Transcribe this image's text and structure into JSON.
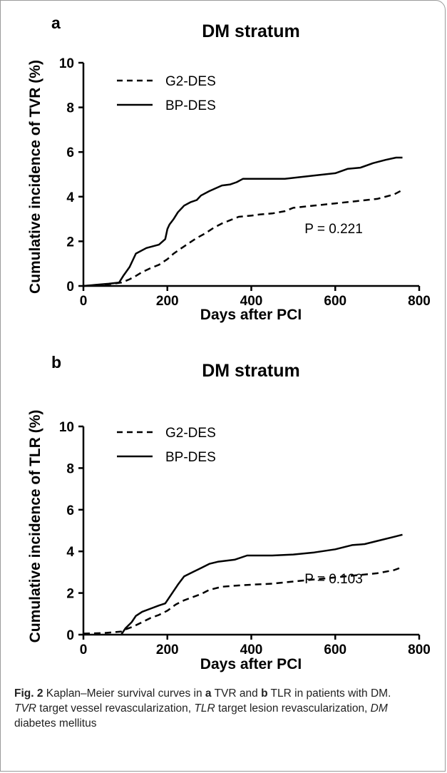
{
  "chart_data": [
    {
      "type": "line",
      "panel_label": "a",
      "title": "DM stratum",
      "xlabel": "Days after PCI",
      "ylabel": "Cumulative incidence of TVR (%)",
      "xlim": [
        0,
        800
      ],
      "ylim": [
        0,
        10
      ],
      "xticks": [
        0,
        200,
        400,
        600,
        800
      ],
      "yticks": [
        0,
        2,
        4,
        6,
        8,
        10
      ],
      "annotation": "P = 0.221",
      "legend_position": "top-left",
      "series": [
        {
          "name": "G2-DES",
          "style": "dashed",
          "points": [
            [
              0,
              0
            ],
            [
              20,
              0.02
            ],
            [
              50,
              0.05
            ],
            [
              90,
              0.15
            ],
            [
              100,
              0.22
            ],
            [
              110,
              0.3
            ],
            [
              125,
              0.45
            ],
            [
              140,
              0.62
            ],
            [
              160,
              0.8
            ],
            [
              180,
              0.95
            ],
            [
              200,
              1.2
            ],
            [
              215,
              1.45
            ],
            [
              230,
              1.65
            ],
            [
              250,
              1.9
            ],
            [
              270,
              2.15
            ],
            [
              290,
              2.35
            ],
            [
              310,
              2.6
            ],
            [
              330,
              2.8
            ],
            [
              350,
              2.95
            ],
            [
              370,
              3.1
            ],
            [
              400,
              3.15
            ],
            [
              420,
              3.2
            ],
            [
              450,
              3.25
            ],
            [
              480,
              3.35
            ],
            [
              500,
              3.5
            ],
            [
              550,
              3.6
            ],
            [
              600,
              3.7
            ],
            [
              650,
              3.8
            ],
            [
              700,
              3.9
            ],
            [
              740,
              4.1
            ],
            [
              760,
              4.3
            ]
          ]
        },
        {
          "name": "BP-DES",
          "style": "solid",
          "points": [
            [
              0,
              0
            ],
            [
              30,
              0.05
            ],
            [
              60,
              0.1
            ],
            [
              85,
              0.15
            ],
            [
              95,
              0.45
            ],
            [
              110,
              0.85
            ],
            [
              125,
              1.45
            ],
            [
              150,
              1.7
            ],
            [
              180,
              1.85
            ],
            [
              195,
              2.1
            ],
            [
              200,
              2.55
            ],
            [
              205,
              2.75
            ],
            [
              215,
              3.0
            ],
            [
              225,
              3.3
            ],
            [
              240,
              3.6
            ],
            [
              255,
              3.75
            ],
            [
              270,
              3.85
            ],
            [
              280,
              4.05
            ],
            [
              300,
              4.25
            ],
            [
              330,
              4.5
            ],
            [
              350,
              4.55
            ],
            [
              365,
              4.65
            ],
            [
              380,
              4.8
            ],
            [
              400,
              4.8
            ],
            [
              480,
              4.8
            ],
            [
              550,
              4.95
            ],
            [
              600,
              5.05
            ],
            [
              630,
              5.25
            ],
            [
              660,
              5.3
            ],
            [
              690,
              5.5
            ],
            [
              720,
              5.65
            ],
            [
              745,
              5.75
            ],
            [
              760,
              5.75
            ]
          ]
        }
      ]
    },
    {
      "type": "line",
      "panel_label": "b",
      "title": "DM stratum",
      "xlabel": "Days after PCI",
      "ylabel": "Cumulative incidence of TLR (%)",
      "xlim": [
        0,
        800
      ],
      "ylim": [
        0,
        10
      ],
      "xticks": [
        0,
        200,
        400,
        600,
        800
      ],
      "yticks": [
        0,
        2,
        4,
        6,
        8,
        10
      ],
      "annotation": "P = 0.103",
      "legend_position": "top-left",
      "series": [
        {
          "name": "G2-DES",
          "style": "dashed",
          "points": [
            [
              0,
              0.05
            ],
            [
              50,
              0.08
            ],
            [
              90,
              0.15
            ],
            [
              100,
              0.25
            ],
            [
              120,
              0.4
            ],
            [
              140,
              0.6
            ],
            [
              160,
              0.8
            ],
            [
              180,
              0.95
            ],
            [
              200,
              1.15
            ],
            [
              220,
              1.45
            ],
            [
              240,
              1.65
            ],
            [
              260,
              1.8
            ],
            [
              280,
              1.95
            ],
            [
              300,
              2.15
            ],
            [
              330,
              2.3
            ],
            [
              360,
              2.35
            ],
            [
              400,
              2.4
            ],
            [
              450,
              2.45
            ],
            [
              500,
              2.55
            ],
            [
              550,
              2.65
            ],
            [
              600,
              2.75
            ],
            [
              650,
              2.85
            ],
            [
              700,
              2.95
            ],
            [
              740,
              3.1
            ],
            [
              760,
              3.25
            ]
          ]
        },
        {
          "name": "BP-DES",
          "style": "solid",
          "points": [
            [
              90,
              0
            ],
            [
              100,
              0.3
            ],
            [
              115,
              0.6
            ],
            [
              125,
              0.9
            ],
            [
              140,
              1.1
            ],
            [
              160,
              1.25
            ],
            [
              180,
              1.4
            ],
            [
              195,
              1.5
            ],
            [
              205,
              1.8
            ],
            [
              215,
              2.1
            ],
            [
              225,
              2.4
            ],
            [
              240,
              2.8
            ],
            [
              260,
              3.0
            ],
            [
              280,
              3.2
            ],
            [
              300,
              3.4
            ],
            [
              320,
              3.5
            ],
            [
              360,
              3.6
            ],
            [
              390,
              3.8
            ],
            [
              450,
              3.8
            ],
            [
              500,
              3.85
            ],
            [
              550,
              3.95
            ],
            [
              600,
              4.1
            ],
            [
              640,
              4.3
            ],
            [
              670,
              4.35
            ],
            [
              700,
              4.5
            ],
            [
              740,
              4.7
            ],
            [
              760,
              4.8
            ]
          ]
        }
      ]
    }
  ],
  "caption": {
    "fig": "Fig. 2",
    "t1": "  Kaplan–Meier survival curves in ",
    "a": "a",
    "t2": " TVR and ",
    "b": "b",
    "t3": " TLR in patients with DM. ",
    "tvr": "TVR",
    "t4": " target vessel revascularization, ",
    "tlr": "TLR",
    "t5": " target lesion revascularization, ",
    "dm": "DM",
    "t6": " diabetes mellitus"
  }
}
